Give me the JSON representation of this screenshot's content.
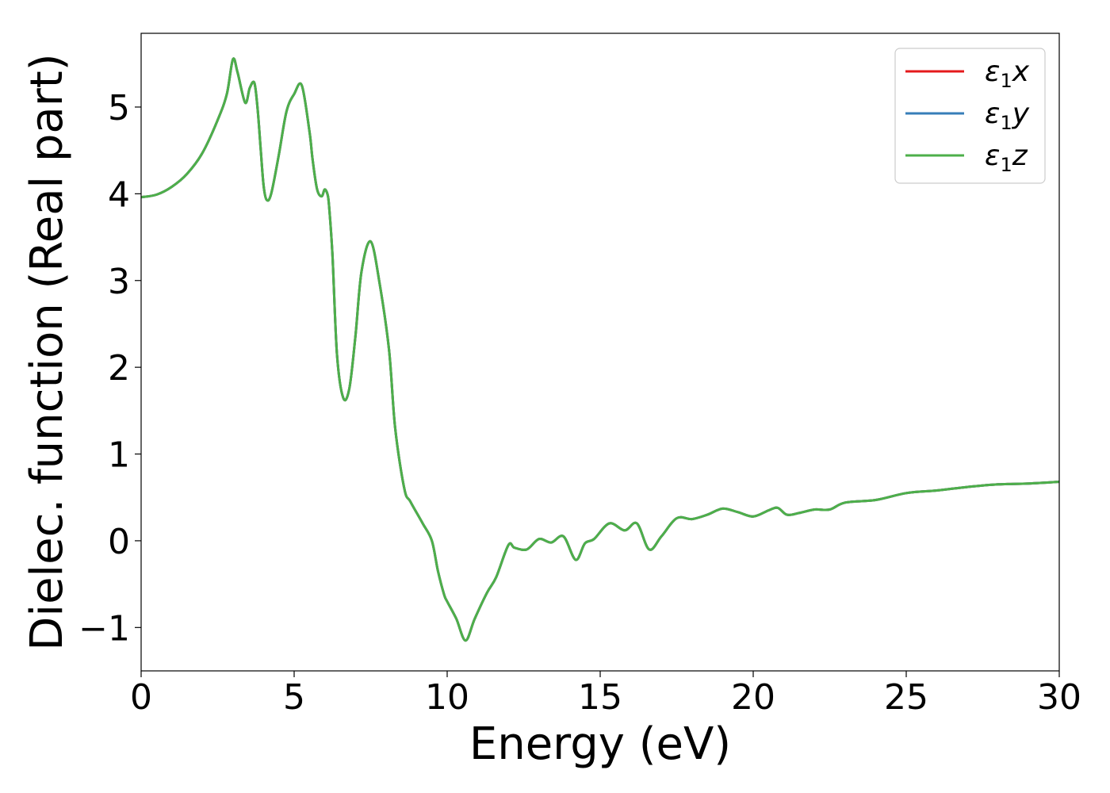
{
  "chart_data": {
    "type": "line",
    "xlabel": "Energy (eV)",
    "ylabel": "Dielec. function (Real part)",
    "xlim": [
      0,
      30
    ],
    "ylim": [
      -1.5,
      5.85
    ],
    "xticks": [
      0,
      5,
      10,
      15,
      20,
      25,
      30
    ],
    "xtick_labels": [
      "0",
      "5",
      "10",
      "15",
      "20",
      "25",
      "30"
    ],
    "yticks": [
      -1,
      0,
      1,
      2,
      3,
      4,
      5
    ],
    "ytick_labels": [
      "−1",
      "0",
      "1",
      "2",
      "3",
      "4",
      "5"
    ],
    "grid": false,
    "legend_position": "top-right",
    "series": [
      {
        "name": "ε1x",
        "label_main": "ε",
        "label_sub": "1",
        "label_var": "x",
        "color": "#e41a1c"
      },
      {
        "name": "ε1y",
        "label_main": "ε",
        "label_sub": "1",
        "label_var": "y",
        "color": "#377eb8"
      },
      {
        "name": "ε1z",
        "label_main": "ε",
        "label_sub": "1",
        "label_var": "z",
        "color": "#4daf4a"
      }
    ],
    "x": [
      0,
      0.5,
      1.0,
      1.5,
      2.0,
      2.5,
      2.8,
      3.0,
      3.15,
      3.4,
      3.55,
      3.7,
      3.8,
      3.9,
      4.0,
      4.1,
      4.25,
      4.5,
      4.75,
      5.0,
      5.25,
      5.5,
      5.6,
      5.75,
      5.9,
      6.0,
      6.1,
      6.15,
      6.25,
      6.4,
      6.6,
      6.8,
      7.0,
      7.2,
      7.5,
      7.8,
      8.1,
      8.3,
      8.6,
      8.8,
      9.2,
      9.5,
      9.7,
      9.9,
      10.0,
      10.3,
      10.6,
      10.9,
      11.3,
      11.6,
      12.0,
      12.2,
      12.6,
      13.0,
      13.4,
      13.8,
      14.2,
      14.5,
      14.8,
      15.3,
      15.8,
      16.2,
      16.6,
      17.0,
      17.5,
      18.0,
      18.5,
      19.0,
      19.5,
      20.0,
      20.5,
      20.8,
      21.1,
      21.5,
      22.0,
      22.5,
      23.0,
      24.0,
      25.0,
      26.0,
      27.0,
      28.0,
      29.0,
      30.0
    ],
    "values": [
      3.96,
      3.99,
      4.08,
      4.23,
      4.47,
      4.85,
      5.15,
      5.55,
      5.4,
      5.05,
      5.22,
      5.28,
      5.0,
      4.55,
      4.1,
      3.93,
      4.0,
      4.45,
      4.95,
      5.15,
      5.25,
      4.72,
      4.4,
      4.05,
      3.97,
      4.05,
      3.98,
      3.82,
      3.3,
      2.15,
      1.65,
      1.75,
      2.35,
      3.1,
      3.45,
      2.95,
      2.2,
      1.3,
      0.6,
      0.45,
      0.2,
      0.0,
      -0.35,
      -0.62,
      -0.7,
      -0.9,
      -1.15,
      -0.9,
      -0.6,
      -0.42,
      -0.05,
      -0.08,
      -0.1,
      0.02,
      -0.02,
      0.05,
      -0.22,
      -0.03,
      0.02,
      0.2,
      0.12,
      0.2,
      -0.1,
      0.05,
      0.26,
      0.25,
      0.3,
      0.37,
      0.33,
      0.28,
      0.35,
      0.38,
      0.3,
      0.32,
      0.36,
      0.36,
      0.44,
      0.47,
      0.55,
      0.58,
      0.62,
      0.65,
      0.66,
      0.68
    ]
  }
}
